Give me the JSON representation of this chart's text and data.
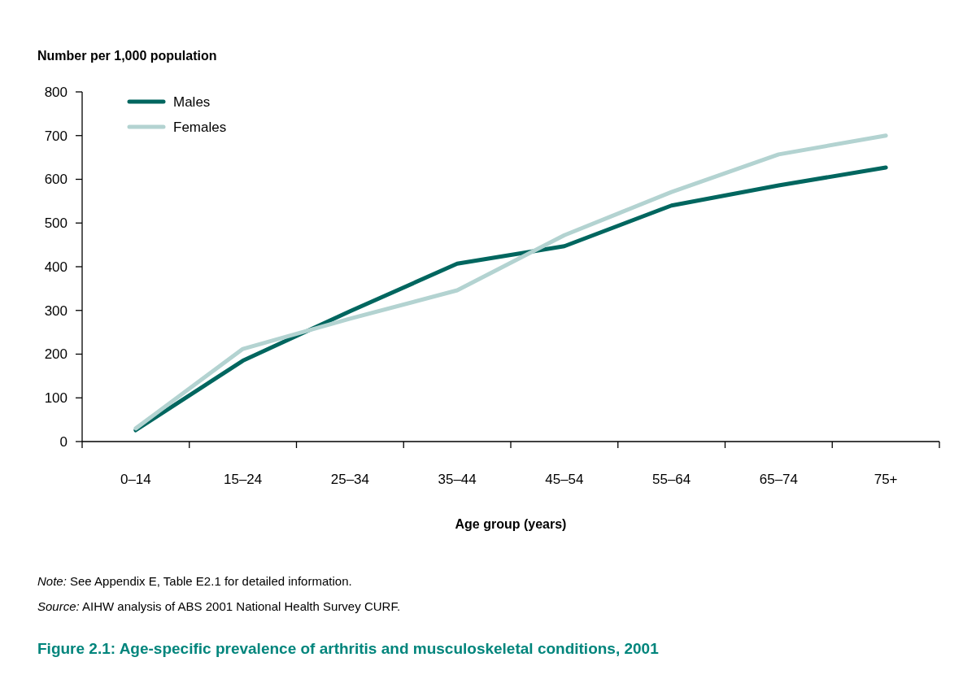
{
  "chart_data": {
    "type": "line",
    "title": "Figure 2.1: Age-specific prevalence of arthritis and musculoskeletal conditions, 2001",
    "ylabel": "Number per 1,000 population",
    "xlabel": "Age group (years)",
    "categories": [
      "0–14",
      "15–24",
      "25–34",
      "35–44",
      "45–54",
      "55–64",
      "65–74",
      "75+"
    ],
    "series": [
      {
        "name": "Males",
        "color": "#00665f",
        "values": [
          26,
          185,
          298,
          407,
          447,
          540,
          586,
          627
        ]
      },
      {
        "name": "Females",
        "color": "#b3d3d1",
        "values": [
          30,
          212,
          281,
          346,
          472,
          571,
          657,
          700
        ]
      }
    ],
    "ylim": [
      0,
      800
    ],
    "yticks": [
      0,
      100,
      200,
      300,
      400,
      500,
      600,
      700,
      800
    ],
    "grid": false,
    "legend": "top left",
    "marker": "none",
    "line_style": "solid",
    "annotations": [
      "Note: See Appendix E, Table E2.1 for detailed information.",
      "Source: AIHW analysis of ABS 2001 National Health Survey CURF."
    ]
  }
}
